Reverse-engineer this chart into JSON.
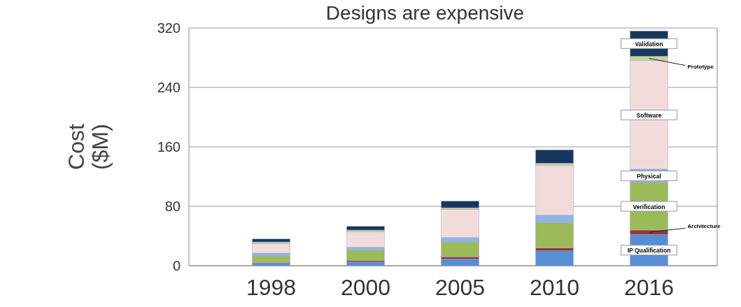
{
  "chart_data": {
    "type": "bar",
    "title": "Designs are expensive",
    "ylabel": "Cost ($M)",
    "categories": [
      "1998",
      "2000",
      "2005",
      "2010",
      "2016"
    ],
    "stacked": true,
    "ylim": [
      0,
      320
    ],
    "yticks": [
      0,
      80,
      160,
      240,
      320
    ],
    "grid": "y",
    "series": [
      {
        "name": "IP Qualification",
        "color": "#558ed5",
        "values": [
          3,
          5,
          9,
          20,
          42
        ]
      },
      {
        "name": "Architecture",
        "color": "#953735",
        "values": [
          1,
          2,
          3,
          4,
          6
        ]
      },
      {
        "name": "Verification",
        "color": "#9bbb59",
        "values": [
          9,
          14,
          20,
          34,
          64
        ]
      },
      {
        "name": "Physical",
        "color": "#8eb4e3",
        "values": [
          4,
          4,
          6,
          10,
          18
        ]
      },
      {
        "name": "Software",
        "color": "#f2dcdb",
        "values": [
          13,
          21,
          38,
          67,
          146
        ]
      },
      {
        "name": "Prototype",
        "color": "#c3d69b",
        "values": [
          2,
          2,
          2,
          3,
          6
        ]
      },
      {
        "name": "Validation",
        "color": "#17375e",
        "values": [
          4,
          5,
          9,
          18,
          34
        ]
      }
    ]
  }
}
